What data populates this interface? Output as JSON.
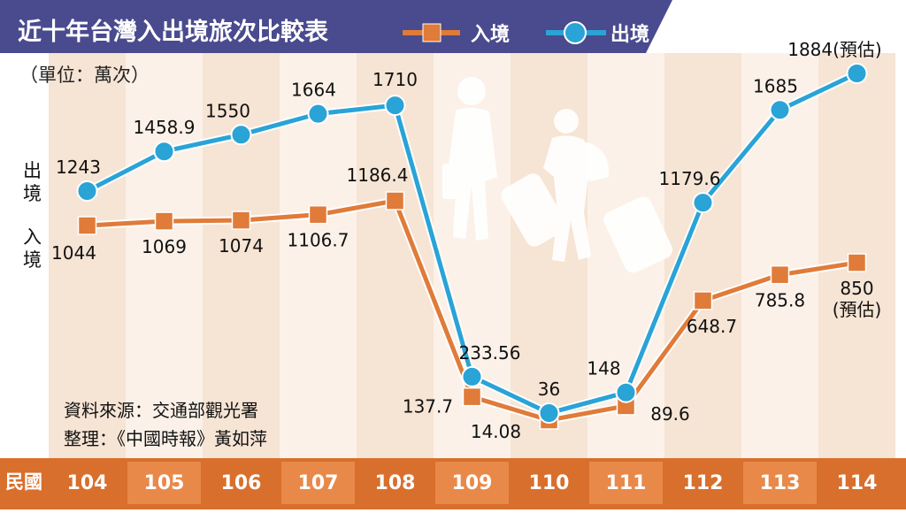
{
  "chart_data": {
    "type": "line",
    "title": "近十年台灣入出境旅次比較表",
    "unit_note": "（單位：萬次）",
    "x_axis_label": "民國",
    "categories": [
      "104",
      "105",
      "106",
      "107",
      "108",
      "109",
      "110",
      "111",
      "112",
      "113",
      "114"
    ],
    "series": [
      {
        "name": "出境",
        "side_label": "出境",
        "values": [
          1243,
          1458.9,
          1550,
          1664,
          1710,
          233.56,
          36,
          148,
          1179.6,
          1685,
          1884
        ],
        "labels": [
          "1243",
          "1458.9",
          "1550",
          "1664",
          "1710",
          "233.56",
          "36",
          "148",
          "1179.6",
          "1685",
          "1884(預估)"
        ],
        "marker": "circle",
        "color": "#2aa3d6"
      },
      {
        "name": "入境",
        "side_label": "入境",
        "values": [
          1044,
          1069,
          1074,
          1106.7,
          1186.4,
          137.7,
          14.08,
          89.6,
          648.7,
          785.8,
          850
        ],
        "labels": [
          "1044",
          "1069",
          "1074",
          "1106.7",
          "1186.4",
          "137.7",
          "14.08",
          "89.6",
          "648.7",
          "785.8",
          "850\n(預估)"
        ],
        "marker": "square",
        "color": "#e07b39"
      }
    ],
    "grid": false
  },
  "source": {
    "line1": "資料來源：交通部觀光署",
    "line2": "整理：《中國時報》黃如萍"
  },
  "colors": {
    "title_bar": "#4a4a8e",
    "column_light": "#f6e4d4",
    "column_lighter": "#fbf1e8",
    "axis_bar": "#d96f2c",
    "axis_bar_alt": "#f0c7a4",
    "outbound": "#2aa3d6",
    "inbound": "#e07b39"
  },
  "icons": {
    "travelers": "travelers-silhouette-icon"
  }
}
